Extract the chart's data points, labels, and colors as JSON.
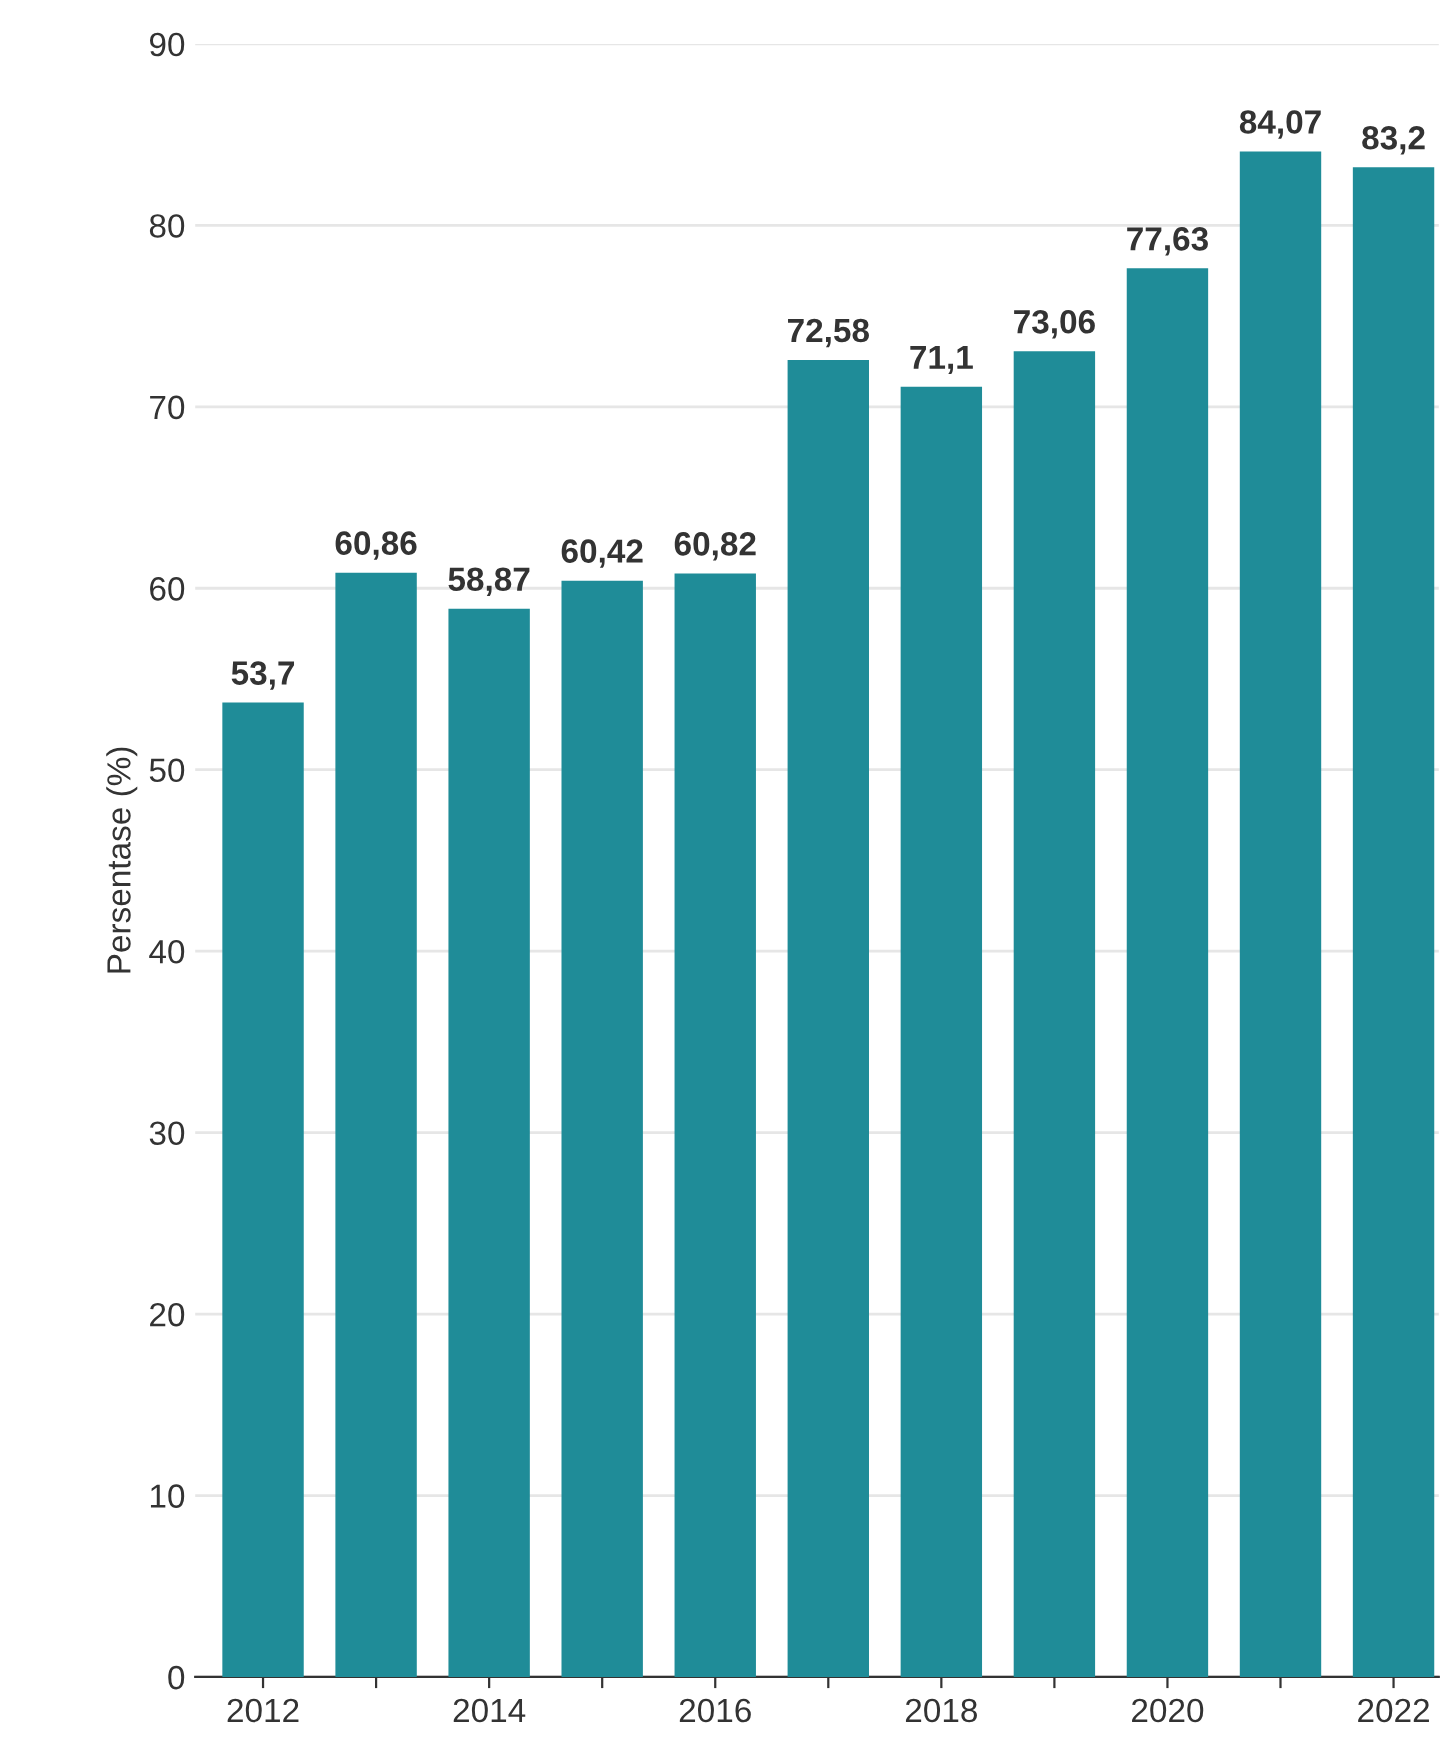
{
  "chart_data": {
    "type": "bar",
    "ylabel": "Persentase (%)",
    "categories": [
      "2012",
      null,
      "2014",
      null,
      "2016",
      null,
      "2018",
      null,
      "2020",
      null,
      "2022"
    ],
    "values": [
      53.7,
      60.86,
      58.87,
      60.42,
      60.82,
      72.58,
      71.1,
      73.06,
      77.63,
      84.07,
      83.2
    ],
    "value_labels": [
      "53,7",
      "60,86",
      "58,87",
      "60,42",
      "60,82",
      "72,58",
      "71,1",
      "73,06",
      "77,63",
      "84,07",
      "83,2"
    ],
    "color": "#1f8c98",
    "ylim": [
      0,
      90
    ],
    "yticks": [
      0,
      10,
      20,
      30,
      40,
      50,
      60,
      70,
      80,
      90
    ],
    "grid": "y",
    "legend": false
  }
}
